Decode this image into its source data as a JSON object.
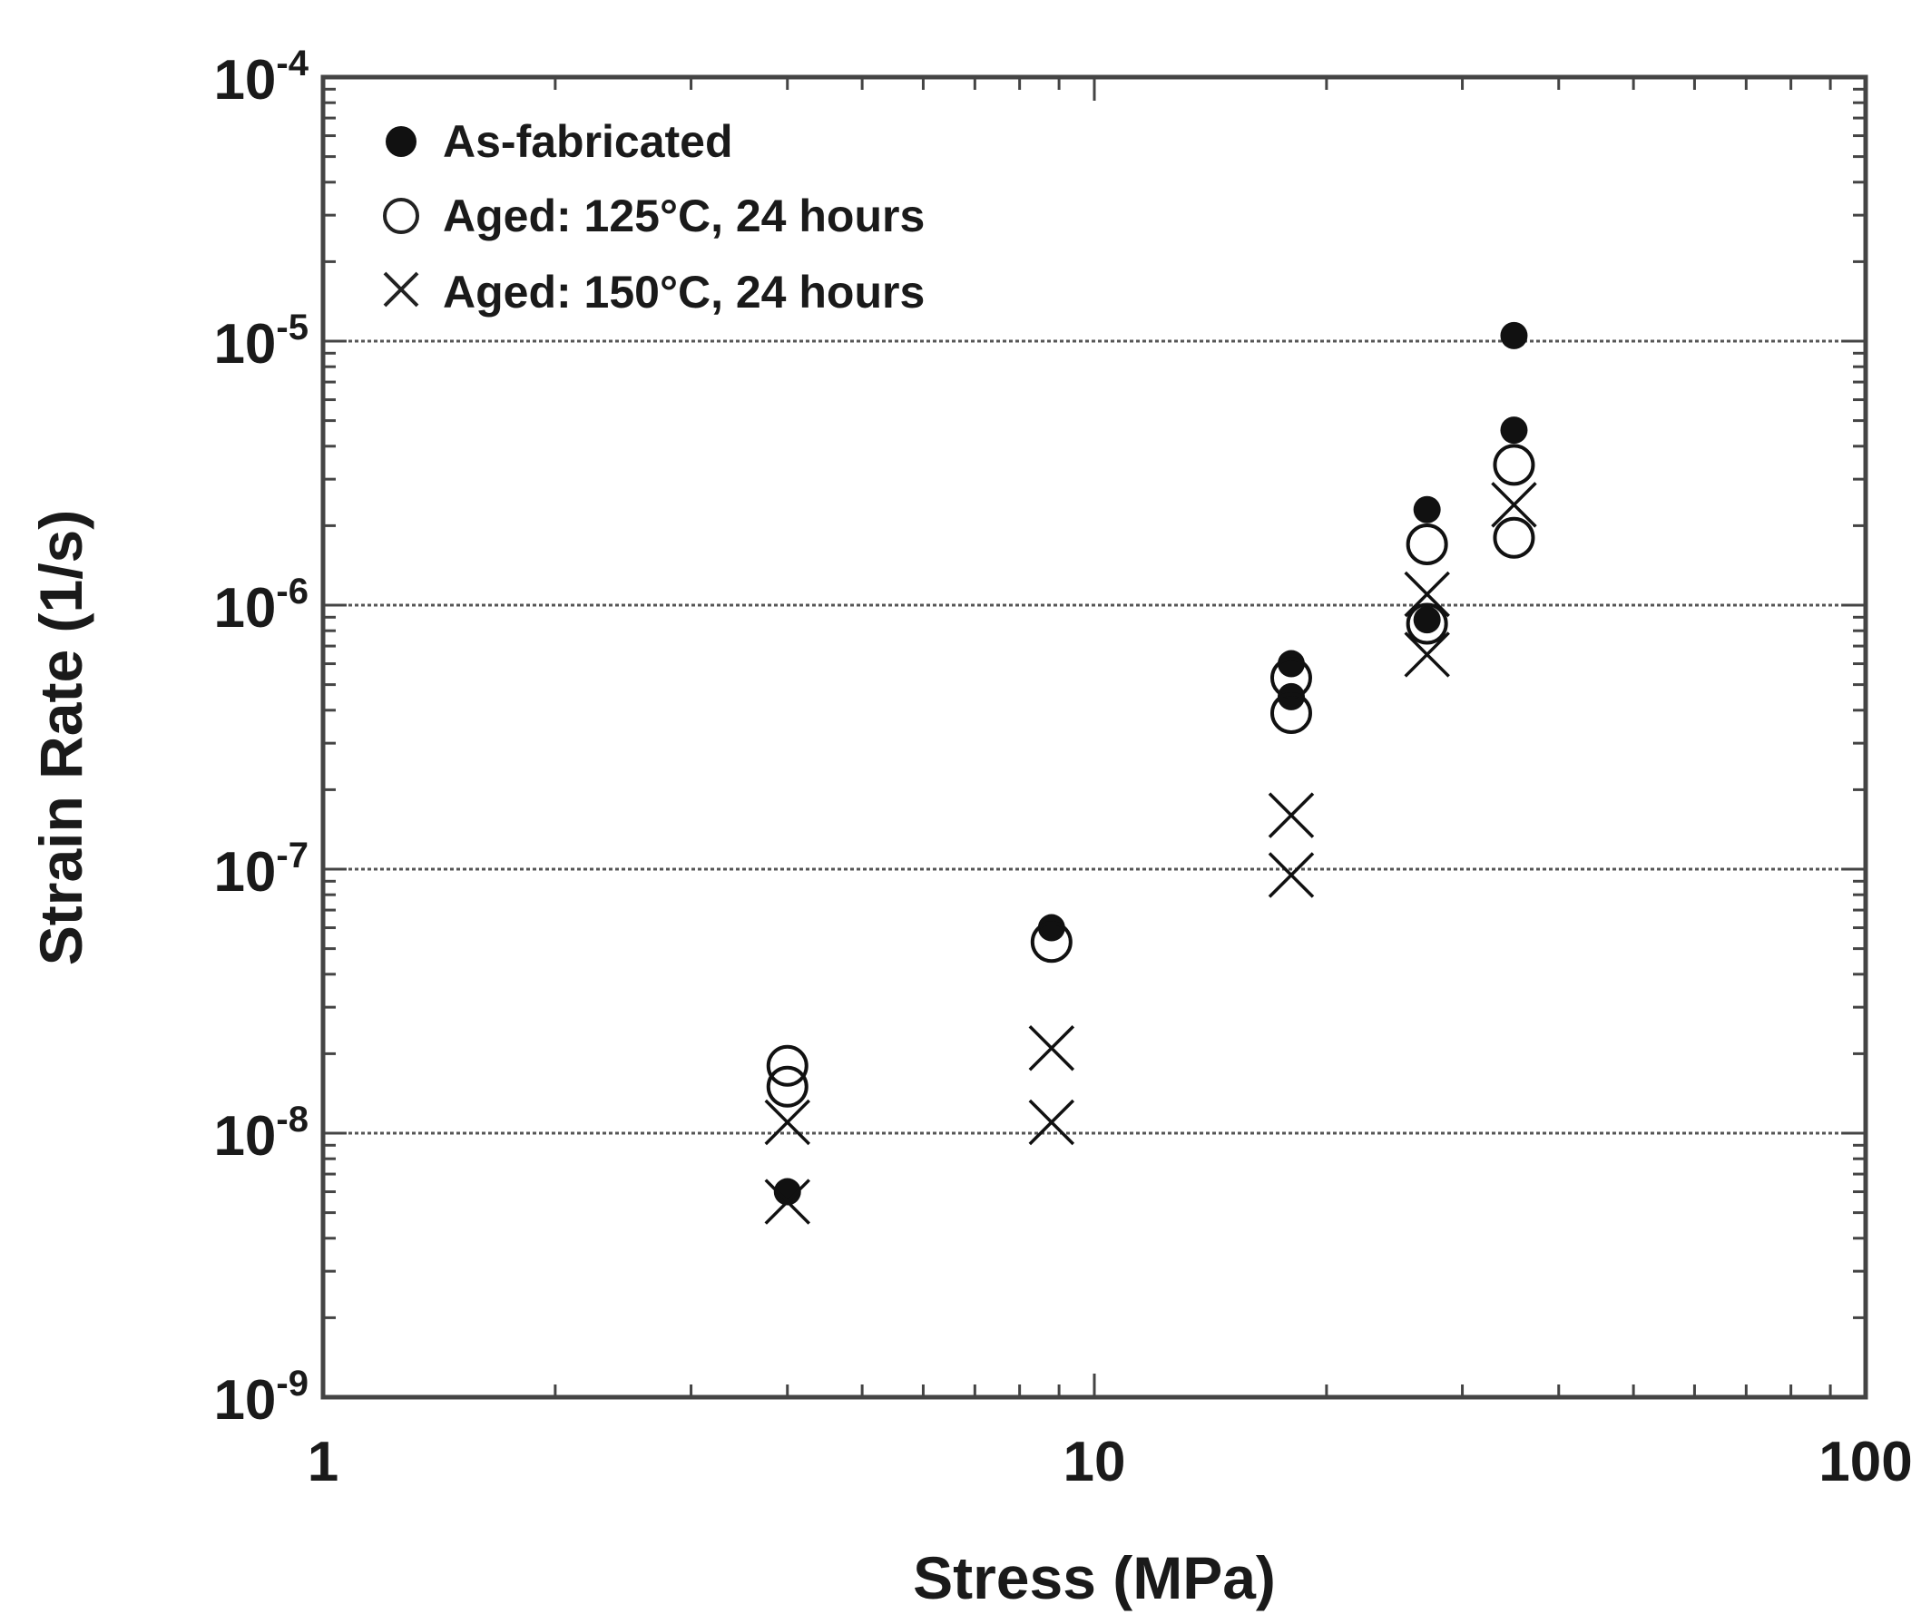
{
  "chart_data": {
    "type": "scatter",
    "xlabel": "Stress  (MPa)",
    "ylabel": "Strain Rate  (1/s)",
    "x_scale": "log",
    "y_scale": "log",
    "xlim": [
      1,
      100
    ],
    "ylim": [
      1e-09,
      0.0001
    ],
    "x_ticks": [
      {
        "value": 1,
        "label": "1"
      },
      {
        "value": 10,
        "label": "10"
      },
      {
        "value": 100,
        "label": "100"
      }
    ],
    "y_ticks": [
      {
        "value": 1e-09,
        "base": "10",
        "exp": "-9"
      },
      {
        "value": 1e-08,
        "base": "10",
        "exp": "-8"
      },
      {
        "value": 1e-07,
        "base": "10",
        "exp": "-7"
      },
      {
        "value": 1e-06,
        "base": "10",
        "exp": "-6"
      },
      {
        "value": 1e-05,
        "base": "10",
        "exp": "-5"
      },
      {
        "value": 0.0001,
        "base": "10",
        "exp": "-4"
      }
    ],
    "grid": "horizontal dotted lines at major y decades",
    "legend_position": "top-left",
    "series": [
      {
        "name": "As-fabricated",
        "marker": "filled-circle",
        "color": "#111111",
        "points": [
          {
            "x": 4.0,
            "y": 6e-09
          },
          {
            "x": 8.8,
            "y": 6e-08
          },
          {
            "x": 18.0,
            "y": 6e-07
          },
          {
            "x": 18.0,
            "y": 4.5e-07
          },
          {
            "x": 27.0,
            "y": 2.3e-06
          },
          {
            "x": 27.0,
            "y": 8.8e-07
          },
          {
            "x": 35.0,
            "y": 1.05e-05
          },
          {
            "x": 35.0,
            "y": 4.6e-06
          }
        ]
      },
      {
        "name": "Aged: 125°C, 24 hours",
        "marker": "open-circle",
        "color": "#111111",
        "points": [
          {
            "x": 4.0,
            "y": 1.8e-08
          },
          {
            "x": 4.0,
            "y": 1.5e-08
          },
          {
            "x": 8.8,
            "y": 5.3e-08
          },
          {
            "x": 18.0,
            "y": 5.3e-07
          },
          {
            "x": 18.0,
            "y": 3.9e-07
          },
          {
            "x": 27.0,
            "y": 1.7e-06
          },
          {
            "x": 27.0,
            "y": 8.5e-07
          },
          {
            "x": 35.0,
            "y": 3.4e-06
          },
          {
            "x": 35.0,
            "y": 1.8e-06
          }
        ]
      },
      {
        "name": "Aged: 150°C, 24 hours",
        "marker": "cross",
        "color": "#111111",
        "points": [
          {
            "x": 4.0,
            "y": 1.1e-08
          },
          {
            "x": 4.0,
            "y": 5.5e-09
          },
          {
            "x": 8.8,
            "y": 2.1e-08
          },
          {
            "x": 8.8,
            "y": 1.1e-08
          },
          {
            "x": 18.0,
            "y": 1.6e-07
          },
          {
            "x": 18.0,
            "y": 9.5e-08
          },
          {
            "x": 27.0,
            "y": 1.1e-06
          },
          {
            "x": 27.0,
            "y": 6.5e-07
          },
          {
            "x": 35.0,
            "y": 2.4e-06
          }
        ]
      }
    ]
  }
}
